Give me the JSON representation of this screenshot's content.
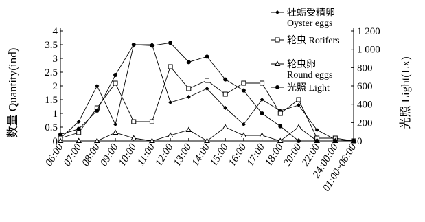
{
  "chart_data": {
    "type": "line",
    "categories": [
      "06:00",
      "07:00",
      "08:00",
      "09:00",
      "10:00",
      "11:00",
      "12:00",
      "13:00",
      "14:00",
      "15:00",
      "16:00",
      "17:00",
      "18:00",
      "20:00",
      "22:00",
      "24:00:00",
      "01:00~06:00"
    ],
    "y_left": {
      "label": "数量 Quantity(ind)",
      "ylim": [
        0,
        4
      ],
      "ticks": [
        0,
        0.5,
        1,
        1.5,
        2,
        2.5,
        3,
        3.5,
        4
      ],
      "tick_labels": [
        "0",
        "0.5",
        "1",
        "1.5",
        "2",
        "2.5",
        "3",
        "3.5",
        "4"
      ]
    },
    "y_right": {
      "label": "光照 Light(Lx)",
      "ylim": [
        0,
        1200
      ],
      "ticks": [
        0,
        200,
        400,
        600,
        800,
        1000,
        1200
      ],
      "tick_labels": [
        "0",
        "200",
        "400",
        "600",
        "800",
        "1 000",
        "1 200"
      ]
    },
    "series": [
      {
        "name": "牡蛎受精卵 Oyster eggs",
        "name_cn": "牡蛎受精卵",
        "name_en": "Oyster eggs",
        "axis": "left",
        "marker": "diamond",
        "values": [
          0.1,
          0.7,
          2.0,
          0.6,
          3.5,
          3.5,
          1.4,
          1.6,
          1.9,
          1.2,
          0.6,
          1.5,
          1.1,
          1.3,
          0.4,
          0.05,
          0
        ]
      },
      {
        "name": "轮虫 Rotifers",
        "name_cn": "轮虫",
        "name_en": "Rotifers",
        "axis": "left",
        "marker": "square",
        "values": [
          0.1,
          0.3,
          1.2,
          2.1,
          0.7,
          0.7,
          2.7,
          1.9,
          2.2,
          1.7,
          2.1,
          2.1,
          1.0,
          1.5,
          0.1,
          0.1,
          0
        ]
      },
      {
        "name": "轮虫卵 Round eggs",
        "name_cn": "轮虫卵",
        "name_en": "Round eggs",
        "axis": "left",
        "marker": "triangle",
        "values": [
          0,
          0,
          0,
          0.3,
          0.1,
          0,
          0.2,
          0.4,
          0,
          0.5,
          0.2,
          0.2,
          0,
          0.5,
          0,
          0,
          0
        ]
      },
      {
        "name": "光照 Light",
        "name_cn": "光照",
        "name_en": "Light",
        "axis": "right",
        "marker": "circle",
        "values": [
          70,
          130,
          330,
          720,
          1050,
          1040,
          1070,
          860,
          920,
          670,
          550,
          300,
          160,
          0,
          0,
          0,
          0
        ]
      }
    ],
    "legend_position": "top-right",
    "grid": false
  }
}
